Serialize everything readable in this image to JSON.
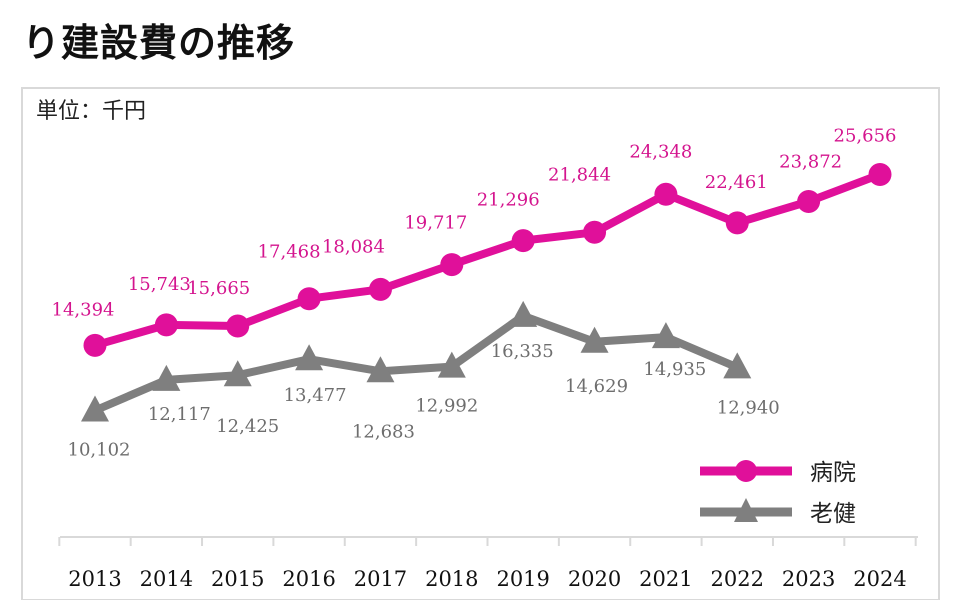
{
  "page": {
    "title": "り建設費の推移"
  },
  "colors": {
    "hospital": "#E0109A",
    "nursing": "#7F7F7F",
    "hospital_label": "#D4148E",
    "nursing_label": "#6E6E6E"
  },
  "chart_data": {
    "type": "line",
    "title": "り建設費の推移",
    "unit_label": "単位：千円",
    "categories": [
      "2013",
      "2014",
      "2015",
      "2016",
      "2017",
      "2018",
      "2019",
      "2020",
      "2021",
      "2022",
      "2023",
      "2024"
    ],
    "ylim": [
      9000,
      27000
    ],
    "grid": false,
    "legend_position": "bottom-right",
    "series": [
      {
        "name": "病院",
        "marker": "circle",
        "values": [
          14394,
          15743,
          15665,
          17468,
          18084,
          19717,
          21296,
          21844,
          24348,
          22461,
          23872,
          25656
        ]
      },
      {
        "name": "老健",
        "marker": "triangle",
        "values": [
          10102,
          12117,
          12425,
          13477,
          12683,
          12992,
          16335,
          14629,
          14935,
          12940,
          null,
          null
        ]
      }
    ],
    "data_labels": {
      "病院": [
        "14,394",
        "15,743",
        "15,665",
        "17,468",
        "18,084",
        "19,717",
        "21,296",
        "21,844",
        "24,348",
        "22,461",
        "23,872",
        "25,656"
      ],
      "老健": [
        "10,102",
        "12,117",
        "12,425",
        "13,477",
        "12,683",
        "12,992",
        "16,335",
        "14,629",
        "14,935",
        "12,940",
        null,
        null
      ]
    }
  }
}
